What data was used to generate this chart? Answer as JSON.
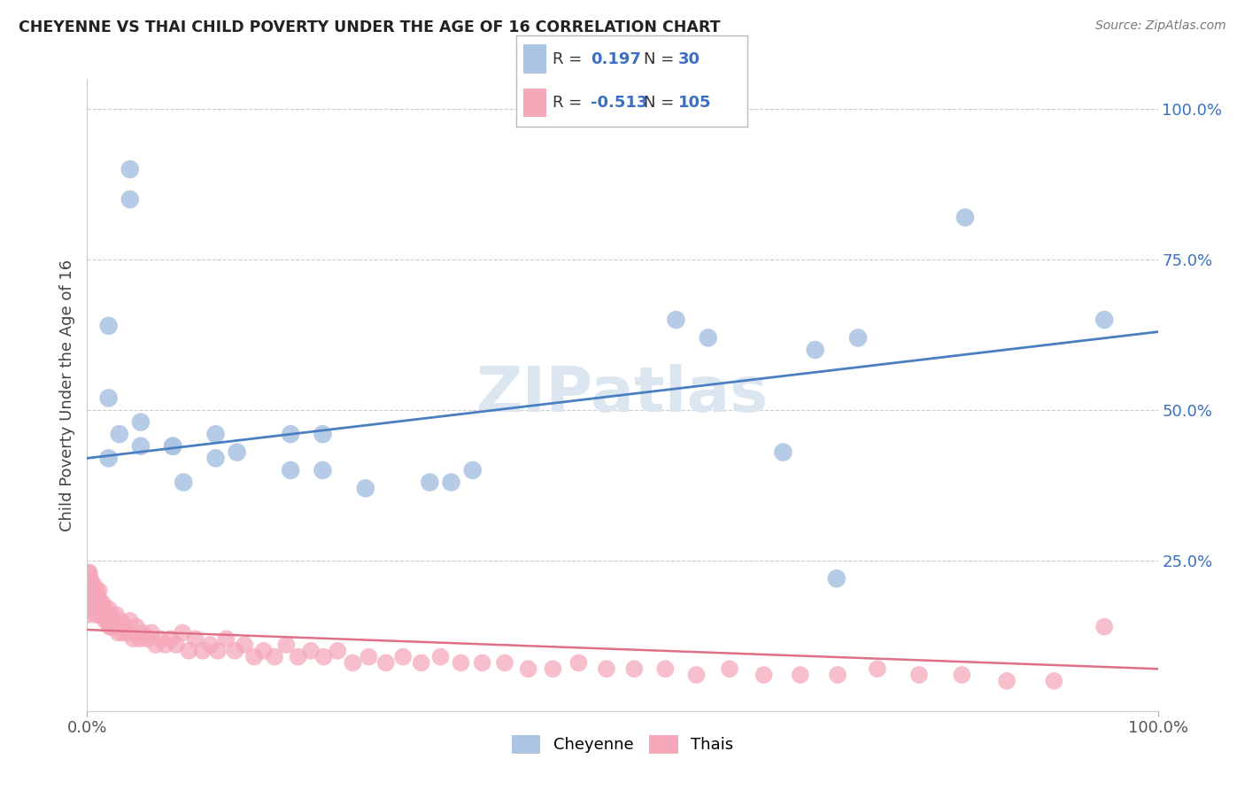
{
  "title": "CHEYENNE VS THAI CHILD POVERTY UNDER THE AGE OF 16 CORRELATION CHART",
  "source": "Source: ZipAtlas.com",
  "ylabel": "Child Poverty Under the Age of 16",
  "xlim": [
    0,
    1.0
  ],
  "ylim": [
    0,
    1.05
  ],
  "xtick_labels": [
    "0.0%",
    "100.0%"
  ],
  "xtick_positions": [
    0.0,
    1.0
  ],
  "ytick_labels": [
    "25.0%",
    "50.0%",
    "75.0%",
    "100.0%"
  ],
  "ytick_positions": [
    0.25,
    0.5,
    0.75,
    1.0
  ],
  "legend_labels": [
    "Cheyenne",
    "Thais"
  ],
  "cheyenne_color": "#aac4e2",
  "thai_color": "#f5a8ba",
  "cheyenne_line_color": "#4a7fc1",
  "thai_line_color": "#e07088",
  "cheyenne_R": "0.197",
  "cheyenne_N": "30",
  "thai_R": "-0.513",
  "thai_N": "105",
  "background_color": "#ffffff",
  "grid_color": "#cccccc",
  "label_color": "#3a6fc4",
  "title_color": "#222222",
  "cheyenne_x": [
    0.02,
    0.04,
    0.04,
    0.02,
    0.02,
    0.03,
    0.05,
    0.05,
    0.08,
    0.09,
    0.12,
    0.12,
    0.14,
    0.19,
    0.19,
    0.22,
    0.22,
    0.26,
    0.32,
    0.34,
    0.36,
    0.55,
    0.58,
    0.65,
    0.68,
    0.7,
    0.72,
    0.82,
    0.95,
    0.08
  ],
  "cheyenne_y": [
    0.64,
    0.9,
    0.85,
    0.52,
    0.42,
    0.46,
    0.48,
    0.44,
    0.44,
    0.38,
    0.42,
    0.46,
    0.43,
    0.46,
    0.4,
    0.46,
    0.4,
    0.37,
    0.38,
    0.38,
    0.4,
    0.65,
    0.62,
    0.43,
    0.6,
    0.22,
    0.62,
    0.82,
    0.65,
    0.44
  ],
  "thai_x": [
    0.001,
    0.001,
    0.001,
    0.001,
    0.001,
    0.001,
    0.001,
    0.001,
    0.002,
    0.002,
    0.002,
    0.003,
    0.003,
    0.003,
    0.004,
    0.004,
    0.005,
    0.005,
    0.006,
    0.006,
    0.007,
    0.007,
    0.008,
    0.008,
    0.009,
    0.009,
    0.01,
    0.01,
    0.011,
    0.011,
    0.012,
    0.013,
    0.014,
    0.015,
    0.016,
    0.017,
    0.018,
    0.019,
    0.02,
    0.021,
    0.022,
    0.023,
    0.024,
    0.025,
    0.027,
    0.029,
    0.031,
    0.033,
    0.035,
    0.038,
    0.04,
    0.043,
    0.046,
    0.049,
    0.052,
    0.056,
    0.06,
    0.064,
    0.068,
    0.073,
    0.078,
    0.083,
    0.089,
    0.095,
    0.101,
    0.108,
    0.115,
    0.122,
    0.13,
    0.138,
    0.147,
    0.156,
    0.165,
    0.175,
    0.186,
    0.197,
    0.209,
    0.221,
    0.234,
    0.248,
    0.263,
    0.279,
    0.295,
    0.312,
    0.33,
    0.349,
    0.369,
    0.39,
    0.412,
    0.435,
    0.459,
    0.485,
    0.511,
    0.54,
    0.569,
    0.6,
    0.632,
    0.666,
    0.701,
    0.738,
    0.777,
    0.817,
    0.859,
    0.903,
    0.95
  ],
  "thai_y": [
    0.2,
    0.22,
    0.18,
    0.19,
    0.21,
    0.17,
    0.23,
    0.16,
    0.21,
    0.19,
    0.23,
    0.2,
    0.22,
    0.18,
    0.21,
    0.19,
    0.2,
    0.17,
    0.21,
    0.18,
    0.2,
    0.17,
    0.19,
    0.16,
    0.2,
    0.17,
    0.19,
    0.16,
    0.2,
    0.17,
    0.18,
    0.17,
    0.18,
    0.16,
    0.17,
    0.15,
    0.16,
    0.15,
    0.17,
    0.14,
    0.16,
    0.14,
    0.15,
    0.14,
    0.16,
    0.13,
    0.15,
    0.13,
    0.14,
    0.13,
    0.15,
    0.12,
    0.14,
    0.12,
    0.13,
    0.12,
    0.13,
    0.11,
    0.12,
    0.11,
    0.12,
    0.11,
    0.13,
    0.1,
    0.12,
    0.1,
    0.11,
    0.1,
    0.12,
    0.1,
    0.11,
    0.09,
    0.1,
    0.09,
    0.11,
    0.09,
    0.1,
    0.09,
    0.1,
    0.08,
    0.09,
    0.08,
    0.09,
    0.08,
    0.09,
    0.08,
    0.08,
    0.08,
    0.07,
    0.07,
    0.08,
    0.07,
    0.07,
    0.07,
    0.06,
    0.07,
    0.06,
    0.06,
    0.06,
    0.07,
    0.06,
    0.06,
    0.05,
    0.05,
    0.14
  ],
  "watermark": "ZIPatlas",
  "watermark_color": "#dce6f0"
}
